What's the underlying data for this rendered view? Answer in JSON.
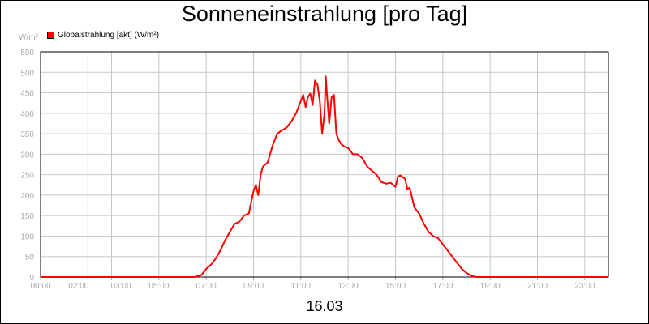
{
  "chart_data": {
    "type": "line",
    "title": "Sonneneinstrahlung [pro Tag]",
    "ylabel": "W/m²",
    "xlabel": "16.03",
    "ylim": [
      0,
      550
    ],
    "xlim": [
      0,
      24
    ],
    "y_ticks": [
      0,
      50,
      100,
      150,
      200,
      250,
      300,
      350,
      400,
      450,
      500,
      550
    ],
    "x_ticks": [
      {
        "hour": 0,
        "label": "00:00"
      },
      {
        "hour": 2,
        "label": "02:00"
      },
      {
        "hour": 3,
        "label": "03:00"
      },
      {
        "hour": 5,
        "label": "05:00"
      },
      {
        "hour": 7,
        "label": "07:00"
      },
      {
        "hour": 9,
        "label": "09:00"
      },
      {
        "hour": 11,
        "label": "11:00"
      },
      {
        "hour": 13,
        "label": "13:00"
      },
      {
        "hour": 15,
        "label": "15:00"
      },
      {
        "hour": 17,
        "label": "17:00"
      },
      {
        "hour": 19,
        "label": "19:00"
      },
      {
        "hour": 21,
        "label": "21:00"
      },
      {
        "hour": 23,
        "label": "23:00"
      }
    ],
    "grid": true,
    "legend_position": "top-left",
    "series": [
      {
        "name": "Globalstrahlung [akt] (W/m²)",
        "color": "#ff0000",
        "x": [
          0,
          6.5,
          6.8,
          7.0,
          7.2,
          7.4,
          7.6,
          7.8,
          8.0,
          8.2,
          8.4,
          8.6,
          8.8,
          9.0,
          9.1,
          9.2,
          9.3,
          9.4,
          9.6,
          9.7,
          9.8,
          10.0,
          10.2,
          10.4,
          10.6,
          10.8,
          11.0,
          11.1,
          11.2,
          11.3,
          11.4,
          11.5,
          11.6,
          11.7,
          11.8,
          11.9,
          12.0,
          12.05,
          12.1,
          12.15,
          12.2,
          12.3,
          12.4,
          12.5,
          12.6,
          12.7,
          12.8,
          13.0,
          13.2,
          13.4,
          13.6,
          13.8,
          14.0,
          14.2,
          14.4,
          14.6,
          14.8,
          15.0,
          15.1,
          15.2,
          15.4,
          15.5,
          15.6,
          15.8,
          16.0,
          16.2,
          16.4,
          16.6,
          16.8,
          17.0,
          17.2,
          17.4,
          17.6,
          17.8,
          18.0,
          18.2,
          18.4,
          18.6,
          19.0,
          24.0
        ],
        "values": [
          0,
          0,
          5,
          20,
          30,
          45,
          65,
          90,
          110,
          130,
          135,
          150,
          155,
          210,
          225,
          200,
          250,
          270,
          280,
          300,
          320,
          350,
          358,
          365,
          380,
          400,
          430,
          445,
          415,
          440,
          448,
          420,
          480,
          470,
          430,
          350,
          400,
          490,
          450,
          410,
          375,
          440,
          445,
          350,
          335,
          325,
          320,
          315,
          300,
          300,
          290,
          270,
          260,
          250,
          232,
          228,
          230,
          220,
          245,
          248,
          240,
          215,
          218,
          170,
          155,
          130,
          110,
          100,
          95,
          80,
          65,
          50,
          35,
          20,
          10,
          3,
          0,
          0,
          0,
          0
        ]
      }
    ]
  }
}
